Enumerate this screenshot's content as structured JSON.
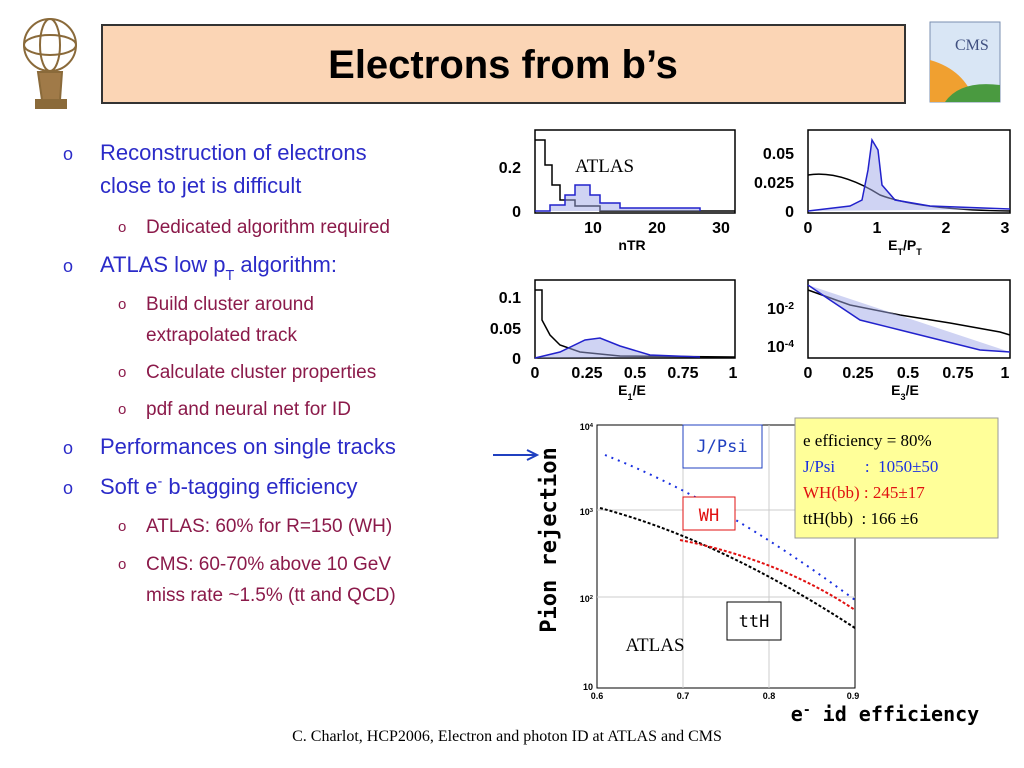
{
  "title": "Electrons from b’s",
  "bullets": [
    {
      "level": 1,
      "lines": [
        "Reconstruction of electrons",
        "close to jet is difficult"
      ]
    },
    {
      "level": 2,
      "lines": [
        "Dedicated algorithm required"
      ]
    },
    {
      "level": 1,
      "lines": [
        [
          {
            "text": "ATLAS low p"
          },
          {
            "text": "T",
            "shift": "sub"
          },
          {
            "text": " algorithm:"
          }
        ]
      ]
    },
    {
      "level": 2,
      "lines": [
        "Build cluster around",
        "extrapolated track"
      ]
    },
    {
      "level": 2,
      "lines": [
        "Calculate cluster properties"
      ]
    },
    {
      "level": 2,
      "lines": [
        "pdf and neural net for ID"
      ]
    },
    {
      "level": 1,
      "lines": [
        "Performances on single tracks"
      ]
    },
    {
      "level": 1,
      "lines": [
        [
          {
            "text": "Soft e"
          },
          {
            "text": "-",
            "shift": "super"
          },
          {
            "text": " b-tagging efficiency"
          }
        ]
      ]
    },
    {
      "level": 2,
      "lines": [
        "ATLAS: 60% for R=150 (WH)"
      ]
    },
    {
      "level": 2,
      "lines": [
        "CMS: 60-70% above 10 GeV",
        "miss rate ~1.5% (tt and QCD)"
      ]
    }
  ],
  "bullet_marker": "o",
  "panels": [
    {
      "xlabel": [
        {
          "text": "nTR"
        }
      ],
      "xticks": [
        "10",
        "20",
        "30"
      ],
      "yticks": [
        "0.2",
        "0"
      ],
      "annotation": "ATLAS"
    },
    {
      "xlabel": [
        {
          "text": "E"
        },
        {
          "text": "T",
          "shift": "sub"
        },
        {
          "text": "/P"
        },
        {
          "text": "T",
          "shift": "sub"
        }
      ],
      "xticks": [
        "0",
        "1",
        "2",
        "3"
      ],
      "yticks": [
        "0.05",
        "0.025",
        "0"
      ]
    },
    {
      "xlabel": [
        {
          "text": "E"
        },
        {
          "text": "1",
          "shift": "sub"
        },
        {
          "text": "/E"
        }
      ],
      "xticks": [
        "0",
        "0.25",
        "0.5",
        "0.75",
        "1"
      ],
      "yticks": [
        "0.1",
        "0.05",
        "0"
      ]
    },
    {
      "xlabel": [
        {
          "text": "E"
        },
        {
          "text": "3",
          "shift": "sub"
        },
        {
          "text": "/E"
        }
      ],
      "xticks": [
        "0",
        "0.25",
        "0.5",
        "0.75",
        "1"
      ],
      "yticks": [
        {
          "base": "10",
          "exp": "-2"
        },
        {
          "base": "10",
          "exp": "-4"
        }
      ]
    }
  ],
  "main_plot": {
    "ylabel": "Pion rejection",
    "xlabel": [
      {
        "text": "e"
      },
      {
        "text": "-",
        "shift": "super"
      },
      {
        "text": " id efficiency"
      }
    ],
    "yticks": [
      {
        "base": "10",
        "exp": "4"
      },
      {
        "base": "10",
        "exp": "3"
      },
      {
        "base": "10",
        "exp": "2"
      },
      {
        "base": "10"
      }
    ],
    "xticks": [
      "0.6",
      "0.7",
      "0.8",
      "0.9"
    ],
    "labels": [
      "J/Psi",
      "WH",
      "ttH"
    ],
    "annotation": "ATLAS"
  },
  "efficiency_box": [
    "e efficiency = 80%",
    "J/Psi       :  1050±50",
    "WH(bb) : 245±17",
    "ttH(bb)  : 166 ±6"
  ],
  "footer": "C. Charlot, HCP2006, Electron and photon ID at ATLAS and CMS"
}
